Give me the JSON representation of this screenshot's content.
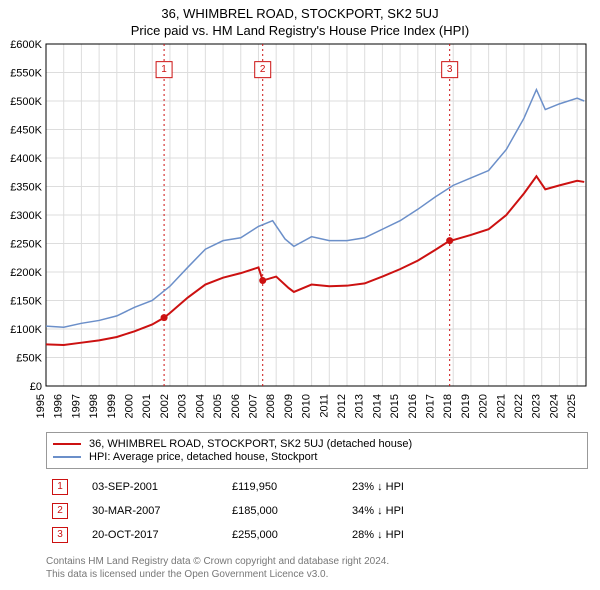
{
  "title": "36, WHIMBREL ROAD, STOCKPORT, SK2 5UJ",
  "subtitle": "Price paid vs. HM Land Registry's House Price Index (HPI)",
  "chart": {
    "type": "line",
    "y_axis": {
      "min": 0,
      "max": 600000,
      "tick_step": 50000,
      "tick_labels": [
        "£0",
        "£50K",
        "£100K",
        "£150K",
        "£200K",
        "£250K",
        "£300K",
        "£350K",
        "£400K",
        "£450K",
        "£500K",
        "£550K",
        "£600K"
      ]
    },
    "x_axis": {
      "min": 1995,
      "max": 2025.5,
      "ticks": [
        1995,
        1996,
        1997,
        1998,
        1999,
        2000,
        2001,
        2002,
        2003,
        2004,
        2005,
        2006,
        2007,
        2008,
        2009,
        2010,
        2011,
        2012,
        2013,
        2014,
        2015,
        2016,
        2017,
        2018,
        2019,
        2020,
        2021,
        2022,
        2023,
        2024,
        2025
      ]
    },
    "background_color": "#ffffff",
    "grid_color": "#dddddd",
    "series": [
      {
        "name": "HPI",
        "label": "HPI: Average price, detached house, Stockport",
        "color": "#6b8fc9",
        "line_width": 1.5,
        "points": [
          [
            1995.0,
            105000
          ],
          [
            1996.0,
            103000
          ],
          [
            1997.0,
            110000
          ],
          [
            1998.0,
            115000
          ],
          [
            1999.0,
            123000
          ],
          [
            2000.0,
            138000
          ],
          [
            2001.0,
            150000
          ],
          [
            2002.0,
            175000
          ],
          [
            2003.0,
            208000
          ],
          [
            2004.0,
            240000
          ],
          [
            2005.0,
            255000
          ],
          [
            2006.0,
            260000
          ],
          [
            2007.0,
            280000
          ],
          [
            2007.8,
            290000
          ],
          [
            2008.5,
            258000
          ],
          [
            2009.0,
            245000
          ],
          [
            2010.0,
            262000
          ],
          [
            2011.0,
            255000
          ],
          [
            2012.0,
            255000
          ],
          [
            2013.0,
            260000
          ],
          [
            2014.0,
            275000
          ],
          [
            2015.0,
            290000
          ],
          [
            2016.0,
            310000
          ],
          [
            2017.0,
            332000
          ],
          [
            2018.0,
            352000
          ],
          [
            2019.0,
            365000
          ],
          [
            2020.0,
            378000
          ],
          [
            2021.0,
            415000
          ],
          [
            2022.0,
            470000
          ],
          [
            2022.7,
            520000
          ],
          [
            2023.2,
            485000
          ],
          [
            2024.0,
            495000
          ],
          [
            2025.0,
            505000
          ],
          [
            2025.4,
            500000
          ]
        ]
      },
      {
        "name": "Property",
        "label": "36, WHIMBREL ROAD, STOCKPORT, SK2 5UJ (detached house)",
        "color": "#cc1111",
        "line_width": 2,
        "points": [
          [
            1995.0,
            73000
          ],
          [
            1996.0,
            72000
          ],
          [
            1997.0,
            76000
          ],
          [
            1998.0,
            80000
          ],
          [
            1999.0,
            86000
          ],
          [
            2000.0,
            96000
          ],
          [
            2001.0,
            108000
          ],
          [
            2001.67,
            119950
          ],
          [
            2002.0,
            128000
          ],
          [
            2003.0,
            155000
          ],
          [
            2004.0,
            178000
          ],
          [
            2005.0,
            190000
          ],
          [
            2006.0,
            198000
          ],
          [
            2007.0,
            208000
          ],
          [
            2007.24,
            185000
          ],
          [
            2008.0,
            192000
          ],
          [
            2008.7,
            172000
          ],
          [
            2009.0,
            165000
          ],
          [
            2010.0,
            178000
          ],
          [
            2011.0,
            175000
          ],
          [
            2012.0,
            176000
          ],
          [
            2013.0,
            180000
          ],
          [
            2014.0,
            192000
          ],
          [
            2015.0,
            205000
          ],
          [
            2016.0,
            220000
          ],
          [
            2017.0,
            239000
          ],
          [
            2017.8,
            255000
          ],
          [
            2018.0,
            256000
          ],
          [
            2019.0,
            265000
          ],
          [
            2020.0,
            275000
          ],
          [
            2021.0,
            300000
          ],
          [
            2022.0,
            338000
          ],
          [
            2022.7,
            368000
          ],
          [
            2023.2,
            345000
          ],
          [
            2024.0,
            352000
          ],
          [
            2025.0,
            360000
          ],
          [
            2025.4,
            358000
          ]
        ]
      }
    ],
    "sale_markers": [
      {
        "num": "1",
        "x": 2001.67,
        "y": 119950,
        "color": "#cc1111"
      },
      {
        "num": "2",
        "x": 2007.24,
        "y": 185000,
        "color": "#cc1111"
      },
      {
        "num": "3",
        "x": 2017.8,
        "y": 255000,
        "color": "#cc1111"
      }
    ],
    "sale_label_top_y": 555000
  },
  "legend": {
    "items": [
      {
        "color": "#cc1111",
        "label": "36, WHIMBREL ROAD, STOCKPORT, SK2 5UJ (detached house)"
      },
      {
        "color": "#6b8fc9",
        "label": "HPI: Average price, detached house, Stockport"
      }
    ]
  },
  "sales": [
    {
      "num": "1",
      "date": "03-SEP-2001",
      "price": "£119,950",
      "diff": "23% ↓ HPI",
      "color": "#cc1111"
    },
    {
      "num": "2",
      "date": "30-MAR-2007",
      "price": "£185,000",
      "diff": "34% ↓ HPI",
      "color": "#cc1111"
    },
    {
      "num": "3",
      "date": "20-OCT-2017",
      "price": "£255,000",
      "diff": "28% ↓ HPI",
      "color": "#cc1111"
    }
  ],
  "footer": {
    "line1": "Contains HM Land Registry data © Crown copyright and database right 2024.",
    "line2": "This data is licensed under the Open Government Licence v3.0."
  }
}
